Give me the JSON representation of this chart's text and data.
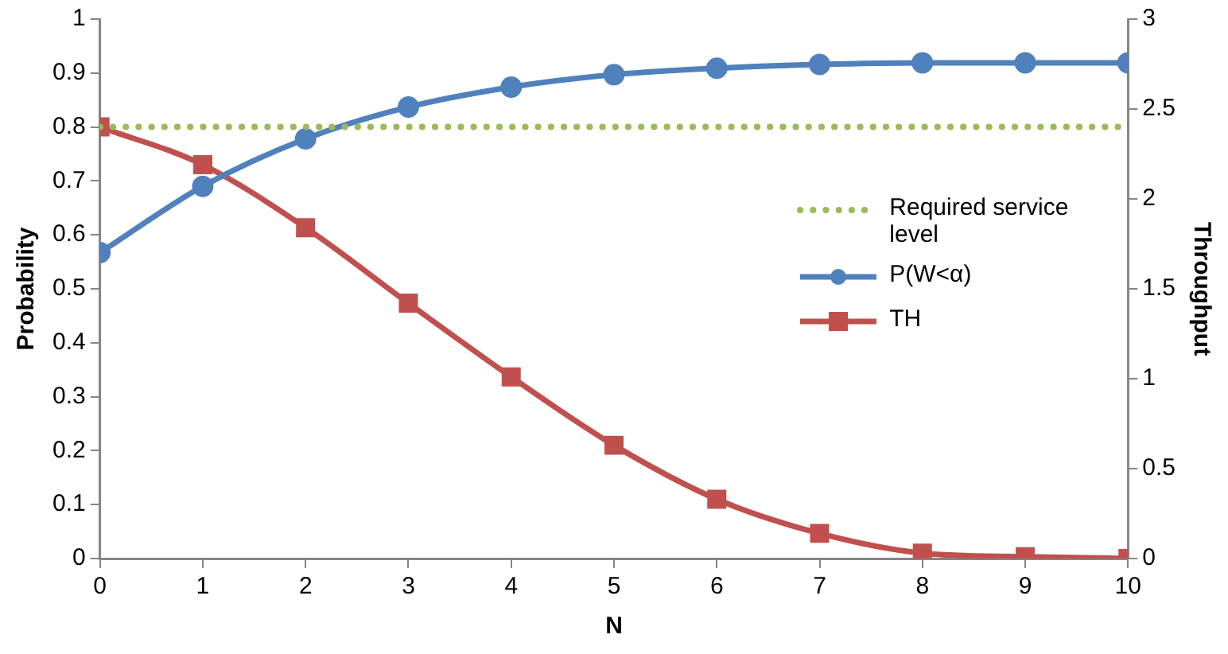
{
  "chart_data": {
    "type": "line",
    "xlabel": "N",
    "ylabel": "Probability",
    "y2label": "Throughput",
    "x": [
      0,
      1,
      2,
      3,
      4,
      5,
      6,
      7,
      8,
      9,
      10
    ],
    "xlim": [
      0,
      10
    ],
    "xticks": [
      0,
      1,
      2,
      3,
      4,
      5,
      6,
      7,
      8,
      9,
      10
    ],
    "ylim": [
      0,
      1
    ],
    "yticks": [
      0,
      0.1,
      0.2,
      0.3,
      0.4,
      0.5,
      0.6,
      0.7,
      0.8,
      0.9,
      1
    ],
    "y2lim": [
      0,
      3
    ],
    "y2ticks": [
      0,
      0.5,
      1,
      1.5,
      2,
      2.5,
      3
    ],
    "grid": false,
    "legend": "right",
    "series": [
      {
        "name": "Required service level",
        "color": "#9bbb59",
        "marker": "none",
        "line_style": "dotted",
        "values": [
          0.8,
          0.8,
          0.8,
          0.8,
          0.8,
          0.8,
          0.8,
          0.8,
          0.8,
          0.8,
          0.8
        ]
      },
      {
        "name": "P(W<α)",
        "color": "#4f81bd",
        "marker": "circle",
        "line_style": "solid",
        "values": [
          0.567,
          0.69,
          0.778,
          0.837,
          0.874,
          0.897,
          0.909,
          0.916,
          0.919,
          0.919,
          0.919
        ]
      },
      {
        "name": "TH",
        "color": "#c0504d",
        "marker": "square",
        "line_style": "solid",
        "axis": "y2",
        "values": [
          2.4,
          2.19,
          1.84,
          1.42,
          1.01,
          0.63,
          0.33,
          0.14,
          0.03,
          0.01,
          0
        ]
      }
    ]
  }
}
